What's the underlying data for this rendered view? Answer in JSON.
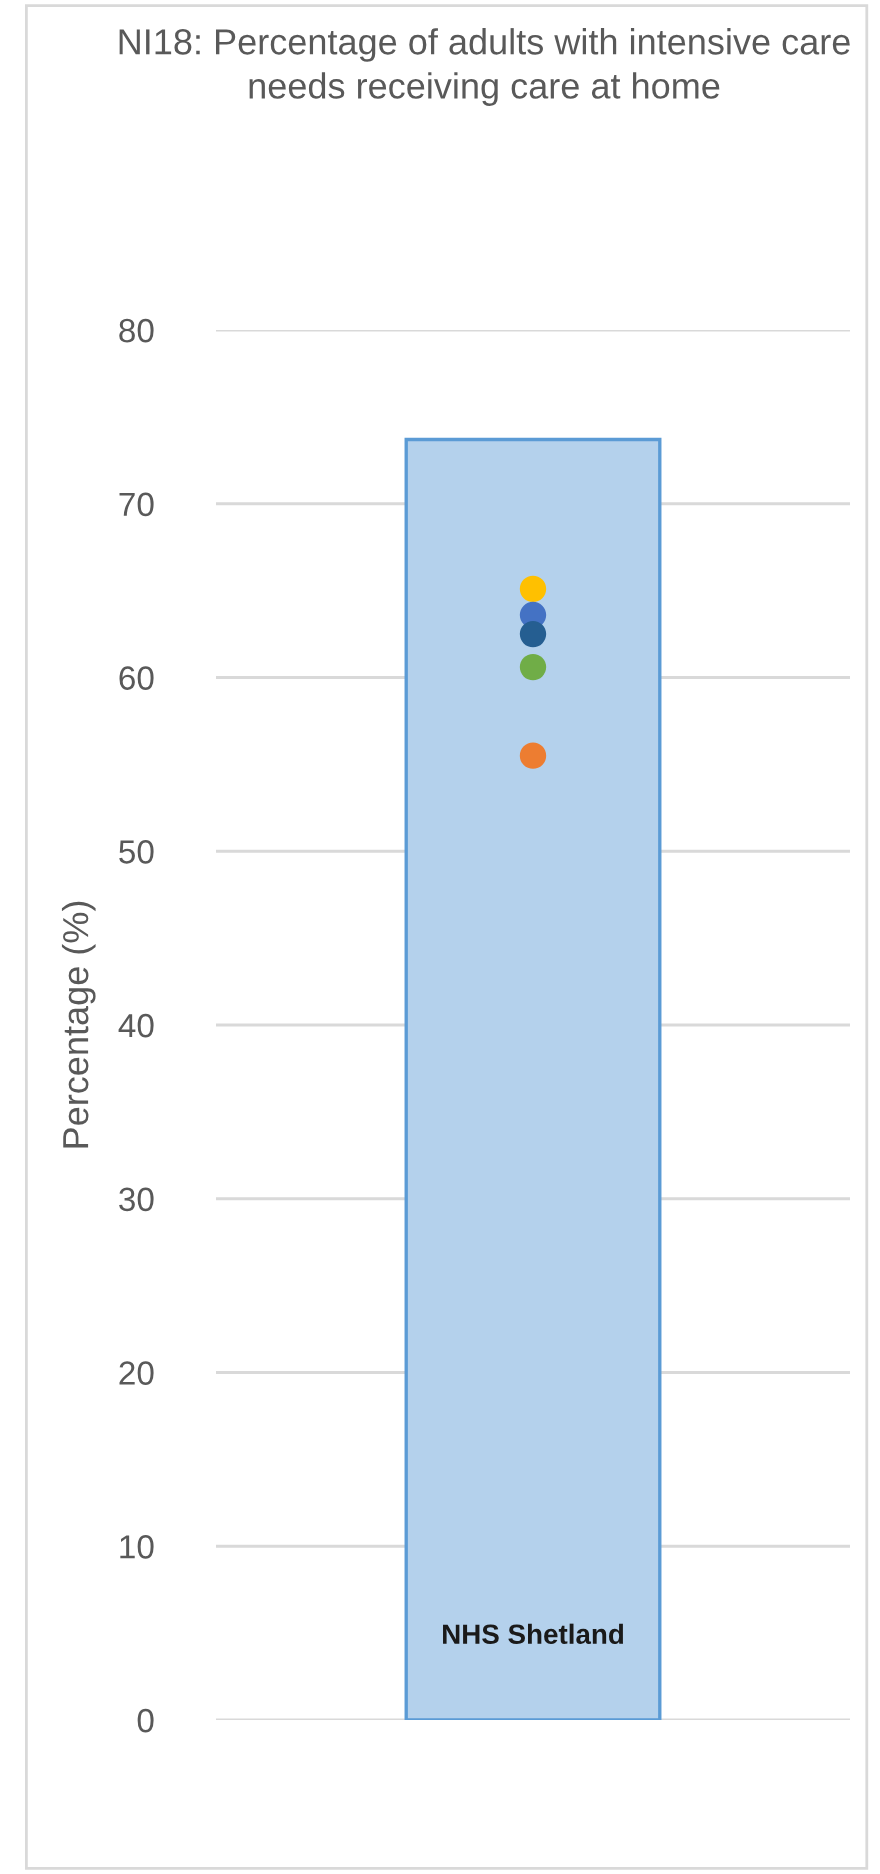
{
  "chart_data": {
    "type": "bar",
    "title": "NI18: Percentage of adults with intensive care needs receiving care at home",
    "ylabel": "Percentage (%)",
    "categories": [
      "NHS Shetland"
    ],
    "series": [
      {
        "color": "#b4d1ec",
        "values": [
          73.7
        ]
      },
      {
        "type": "scatter",
        "color": "#ffc000",
        "x": [
          "NHS Shetland"
        ],
        "values": [
          65.1
        ]
      },
      {
        "type": "scatter",
        "color": "#4472c4",
        "x": [
          "NHS Shetland"
        ],
        "values": [
          63.6
        ]
      },
      {
        "type": "scatter",
        "color": "#255e91",
        "x": [
          "NHS Shetland"
        ],
        "values": [
          62.5
        ]
      },
      {
        "type": "scatter",
        "color": "#70ad47",
        "x": [
          "NHS Shetland"
        ],
        "values": [
          60.6
        ]
      },
      {
        "type": "scatter",
        "color": "#ed7d31",
        "x": [
          "NHS Shetland"
        ],
        "values": [
          55.5
        ]
      }
    ],
    "ylim": [
      0,
      80
    ],
    "yticks": [
      0,
      10,
      20,
      30,
      40,
      50,
      60,
      70,
      80
    ],
    "grid": "y",
    "marker": "circle",
    "legend": false
  }
}
